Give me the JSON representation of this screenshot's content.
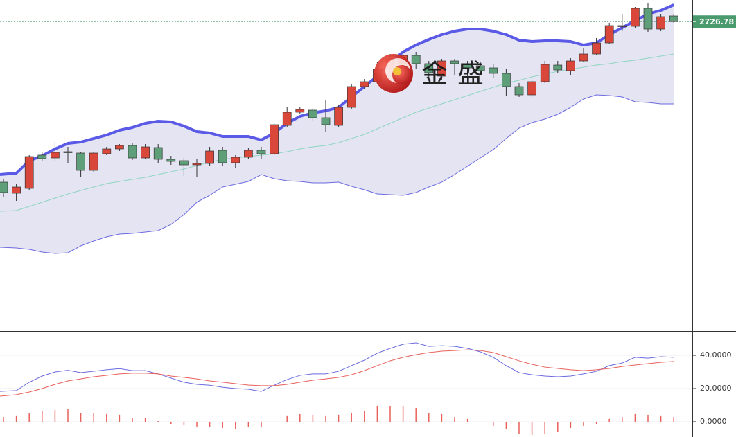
{
  "watermark": "金盛",
  "chart_data": [
    {
      "type": "candlestick",
      "ylim": [
        2280,
        2758
      ],
      "up_color": "#d9473a",
      "down_color": "#5e9e78",
      "open": [
        2495,
        2479,
        2486,
        2534,
        2530,
        2539,
        2537,
        2512,
        2536,
        2543,
        2548,
        2530,
        2545,
        2528,
        2526,
        2520,
        2522,
        2541,
        2523,
        2531,
        2541,
        2536,
        2577,
        2596,
        2599,
        2588,
        2577,
        2603,
        2633,
        2640,
        2658,
        2666,
        2678,
        2666,
        2648,
        2670,
        2666,
        2663,
        2660,
        2652,
        2633,
        2621,
        2640,
        2664,
        2656,
        2670,
        2680,
        2696,
        2720,
        2720,
        2746,
        2716,
        2735
      ],
      "high": [
        2500,
        2493,
        2534,
        2538,
        2553,
        2546,
        2539,
        2539,
        2546,
        2550,
        2552,
        2550,
        2550,
        2533,
        2530,
        2528,
        2546,
        2546,
        2534,
        2545,
        2546,
        2580,
        2603,
        2604,
        2602,
        2613,
        2606,
        2637,
        2644,
        2668,
        2680,
        2688,
        2683,
        2670,
        2673,
        2673,
        2670,
        2668,
        2666,
        2658,
        2638,
        2643,
        2670,
        2670,
        2674,
        2688,
        2703,
        2725,
        2738,
        2748,
        2754,
        2738,
        2738
      ],
      "low": [
        2473,
        2468,
        2483,
        2526,
        2526,
        2523,
        2502,
        2510,
        2534,
        2540,
        2527,
        2528,
        2522,
        2520,
        2504,
        2503,
        2518,
        2518,
        2515,
        2528,
        2528,
        2534,
        2574,
        2593,
        2583,
        2568,
        2575,
        2600,
        2630,
        2636,
        2654,
        2663,
        2658,
        2646,
        2643,
        2650,
        2648,
        2650,
        2646,
        2620,
        2618,
        2618,
        2638,
        2652,
        2650,
        2668,
        2678,
        2694,
        2713,
        2718,
        2712,
        2713,
        2725
      ],
      "close": [
        2480,
        2488,
        2532,
        2529,
        2538,
        2538,
        2512,
        2537,
        2543,
        2548,
        2530,
        2546,
        2528,
        2525,
        2520,
        2522,
        2540,
        2523,
        2531,
        2541,
        2536,
        2578,
        2596,
        2600,
        2588,
        2578,
        2603,
        2633,
        2640,
        2658,
        2673,
        2678,
        2666,
        2653,
        2670,
        2666,
        2660,
        2656,
        2652,
        2633,
        2621,
        2640,
        2665,
        2657,
        2670,
        2680,
        2696,
        2721,
        2721,
        2746,
        2716,
        2734,
        2726.78
      ],
      "band_fill": "#e4e4f2",
      "bands": [
        {
          "color": "#5a5ae6",
          "width": 4,
          "values": [
            2506,
            2508,
            2526,
            2533,
            2543,
            2551,
            2553,
            2558,
            2563,
            2570,
            2574,
            2580,
            2583,
            2582,
            2576,
            2568,
            2566,
            2561,
            2561,
            2561,
            2556,
            2566,
            2580,
            2590,
            2595,
            2598,
            2603,
            2618,
            2633,
            2648,
            2668,
            2683,
            2693,
            2701,
            2708,
            2713,
            2716,
            2716,
            2713,
            2708,
            2700,
            2698,
            2699,
            2699,
            2698,
            2693,
            2696,
            2708,
            2718,
            2728,
            2738,
            2743,
            2751
          ]
        },
        {
          "color": "#8fd6c0",
          "width": 1,
          "values": [
            2453,
            2454,
            2460,
            2466,
            2472,
            2478,
            2483,
            2488,
            2493,
            2496,
            2499,
            2502,
            2506,
            2510,
            2514,
            2519,
            2524,
            2528,
            2530,
            2532,
            2534,
            2536,
            2539,
            2543,
            2546,
            2548,
            2552,
            2558,
            2564,
            2572,
            2580,
            2588,
            2596,
            2602,
            2608,
            2614,
            2620,
            2626,
            2632,
            2638,
            2642,
            2647,
            2651,
            2655,
            2658,
            2661,
            2664,
            2666,
            2669,
            2671,
            2674,
            2677,
            2680
          ]
        },
        {
          "color": "#6a6ae0",
          "width": 1,
          "values": [
            2401,
            2400,
            2398,
            2394,
            2392,
            2393,
            2403,
            2410,
            2416,
            2420,
            2421,
            2423,
            2425,
            2434,
            2448,
            2466,
            2476,
            2488,
            2492,
            2496,
            2506,
            2500,
            2497,
            2496,
            2494,
            2494,
            2495,
            2489,
            2484,
            2478,
            2477,
            2476,
            2480,
            2488,
            2495,
            2506,
            2518,
            2530,
            2542,
            2558,
            2573,
            2581,
            2586,
            2593,
            2603,
            2615,
            2621,
            2620,
            2618,
            2611,
            2610,
            2608,
            2608
          ]
        }
      ],
      "last_price": 2726.78,
      "last_price_color": "#4a9a6e"
    },
    {
      "type": "macd",
      "ylim": [
        -9.2,
        54.2
      ],
      "yticks": [
        {
          "value": 0,
          "label": "0.0000"
        },
        {
          "value": 20,
          "label": "20.0000"
        },
        {
          "value": 40,
          "label": "40.0000"
        }
      ],
      "grid": true,
      "series": [
        {
          "color": "#6a6ae0",
          "values": [
            18.3,
            18.8,
            23.8,
            27.5,
            30,
            31,
            29.6,
            30.4,
            31.3,
            32,
            30.8,
            30.8,
            28.8,
            26.3,
            23.8,
            22.5,
            22,
            20.8,
            20,
            19.6,
            18.3,
            22,
            25.4,
            27.9,
            28.8,
            28.8,
            30.4,
            33.8,
            37.1,
            41.3,
            44.2,
            46.7,
            47.5,
            45.4,
            45.8,
            45.4,
            44.2,
            42.1,
            38.8,
            33.8,
            29.6,
            28.3,
            27.5,
            27.1,
            27.5,
            28.8,
            30.4,
            33.8,
            35.4,
            38.8,
            38.3,
            39.2,
            38.8
          ]
        },
        {
          "color": "#e8605a",
          "values": [
            15.4,
            16.3,
            17.9,
            20,
            22.5,
            24.6,
            25.8,
            27.1,
            27.9,
            28.8,
            29.2,
            29.2,
            28.8,
            27.5,
            26.7,
            25.8,
            24.6,
            23.8,
            22.9,
            22.1,
            21.7,
            21.7,
            22.5,
            23.8,
            25,
            25.8,
            26.7,
            28.3,
            30.8,
            33.8,
            36.7,
            38.8,
            40.4,
            41.7,
            42.5,
            42.9,
            43.3,
            42.9,
            41.7,
            39.2,
            36.7,
            34.6,
            32.9,
            32.1,
            31.3,
            30.8,
            31.3,
            32.1,
            33.3,
            34.2,
            35,
            35.8,
            36.3
          ]
        }
      ],
      "histogram": {
        "color": "#e8605a",
        "values": [
          2.9,
          3.8,
          5.4,
          6.3,
          7.1,
          7.5,
          5,
          5,
          4.6,
          4.2,
          2.5,
          2.5,
          0.4,
          -1.3,
          -2.1,
          -2.9,
          -3.3,
          -3.8,
          -4.2,
          -3.3,
          -3.3,
          0,
          3.8,
          4.6,
          4.2,
          3.8,
          4.2,
          5.4,
          6.3,
          9.6,
          9.6,
          9.6,
          8.3,
          5.4,
          4.6,
          2.9,
          1.7,
          0,
          -2.5,
          -4.6,
          -7.5,
          -7.9,
          -7.1,
          -6.3,
          -3.8,
          -2.5,
          -1.3,
          1.7,
          2.9,
          4.6,
          4.2,
          3.8,
          2.9
        ]
      }
    }
  ]
}
